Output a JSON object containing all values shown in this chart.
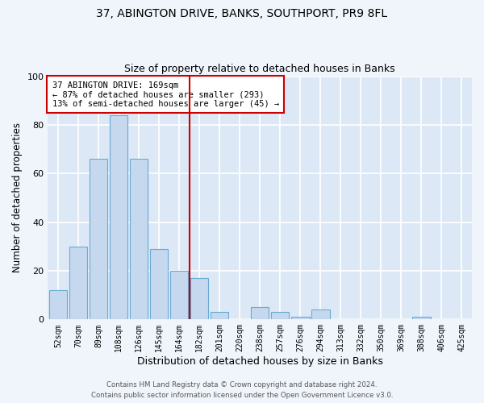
{
  "title1": "37, ABINGTON DRIVE, BANKS, SOUTHPORT, PR9 8FL",
  "title2": "Size of property relative to detached houses in Banks",
  "xlabel": "Distribution of detached houses by size in Banks",
  "ylabel": "Number of detached properties",
  "categories": [
    "52sqm",
    "70sqm",
    "89sqm",
    "108sqm",
    "126sqm",
    "145sqm",
    "164sqm",
    "182sqm",
    "201sqm",
    "220sqm",
    "238sqm",
    "257sqm",
    "276sqm",
    "294sqm",
    "313sqm",
    "332sqm",
    "350sqm",
    "369sqm",
    "388sqm",
    "406sqm",
    "425sqm"
  ],
  "values": [
    12,
    30,
    66,
    84,
    66,
    29,
    20,
    17,
    3,
    0,
    5,
    3,
    1,
    4,
    0,
    0,
    0,
    0,
    1,
    0,
    0
  ],
  "bar_color": "#c5d8ee",
  "bar_edge_color": "#6aaad4",
  "vline_color": "#cc0000",
  "annotation_text": "37 ABINGTON DRIVE: 169sqm\n← 87% of detached houses are smaller (293)\n13% of semi-detached houses are larger (45) →",
  "annotation_box_color": "#ffffff",
  "annotation_box_edge": "#cc0000",
  "ylim": [
    0,
    100
  ],
  "yticks": [
    0,
    20,
    40,
    60,
    80,
    100
  ],
  "bg_color": "#dce8f5",
  "grid_color": "#ffffff",
  "fig_bg_color": "#f0f5fc",
  "footer1": "Contains HM Land Registry data © Crown copyright and database right 2024.",
  "footer2": "Contains public sector information licensed under the Open Government Licence v3.0."
}
